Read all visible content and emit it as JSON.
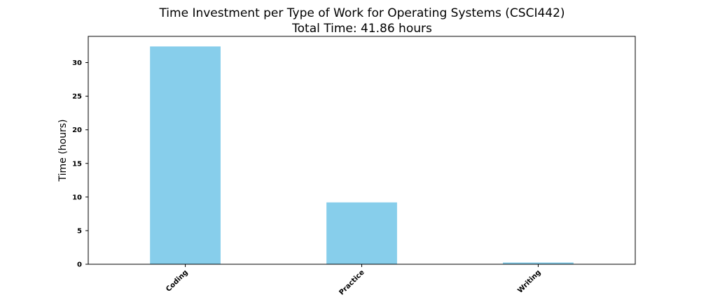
{
  "chart_data": {
    "type": "bar",
    "title": "Time Investment per Type of Work for Operating Systems (CSCI442)",
    "subtitle": "Total Time: 41.86 hours",
    "xlabel": "",
    "ylabel": "Time (hours)",
    "categories": [
      "Coding",
      "Practice",
      "Writing"
    ],
    "values": [
      32.4,
      9.2,
      0.26
    ],
    "ylim": [
      0,
      33.9
    ],
    "yticks": [
      0,
      5,
      10,
      15,
      20,
      25,
      30
    ],
    "bar_color": "#87CEEB",
    "grid": false,
    "legend": "none"
  }
}
